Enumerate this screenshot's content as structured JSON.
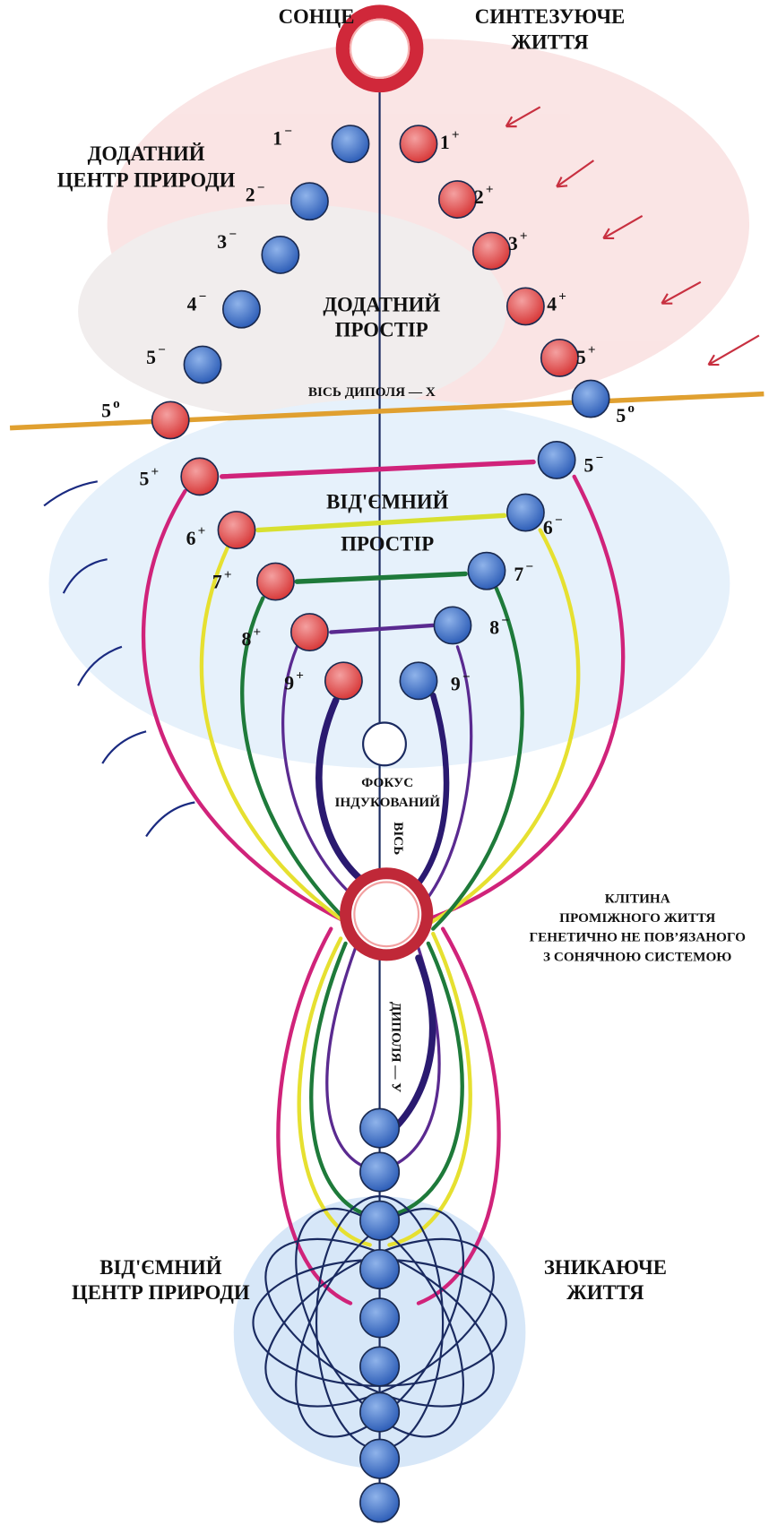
{
  "labels": {
    "sun": "СОНЦЕ",
    "synthesizing": [
      "СИНТЕЗУЮЧЕ",
      "ЖИТТЯ"
    ],
    "positive_center": [
      "ДОДАТНИЙ",
      "ЦЕНТР ПРИРОДИ"
    ],
    "positive_space": [
      "ДОДАТНИЙ",
      "ПРОСТІР"
    ],
    "axis_x": "ВІСЬ ДИПОЛЯ — Х",
    "negative_space": [
      "ВІД'ЄМНИЙ",
      "ПРОСТІР"
    ],
    "focus": [
      "ФОКУС",
      "ІНДУКОВАНИЙ"
    ],
    "axis_y": [
      "ВІСЬ",
      "ДИПОЛЯ — У"
    ],
    "cell": [
      "КЛІТИНА",
      "ПРОМІЖНОГО ЖИТТЯ",
      "ГЕНЕТИЧНО НЕ ПОВ’ЯЗАНОГО",
      "З СОНЯЧНОЮ СИСТЕМОЮ"
    ],
    "negative_center": [
      "ВІД'ЄМНИЙ",
      "ЦЕНТР ПРИРОДИ"
    ],
    "vanishing": [
      "ЗНИКАЮЧЕ",
      "ЖИТТЯ"
    ]
  },
  "spheres": [
    {
      "number": "1",
      "sign": "−"
    },
    {
      "number": "2",
      "sign": "−"
    },
    {
      "number": "3",
      "sign": "−"
    },
    {
      "number": "4",
      "sign": "−"
    },
    {
      "number": "5",
      "sign": "−"
    },
    {
      "number": "1",
      "sign": "+"
    },
    {
      "number": "2",
      "sign": "+"
    },
    {
      "number": "3",
      "sign": "+"
    },
    {
      "number": "4",
      "sign": "+"
    },
    {
      "number": "5",
      "sign": "+"
    },
    {
      "number": "5",
      "sign": "o"
    },
    {
      "number": "5",
      "sign": "o"
    },
    {
      "number": "5",
      "sign": "+"
    },
    {
      "number": "6",
      "sign": "+"
    },
    {
      "number": "7",
      "sign": "+"
    },
    {
      "number": "8",
      "sign": "+"
    },
    {
      "number": "9",
      "sign": "+"
    },
    {
      "number": "5",
      "sign": "−"
    },
    {
      "number": "6",
      "sign": "−"
    },
    {
      "number": "7",
      "sign": "−"
    },
    {
      "number": "8",
      "sign": "−"
    },
    {
      "number": "9",
      "sign": "−"
    }
  ]
}
